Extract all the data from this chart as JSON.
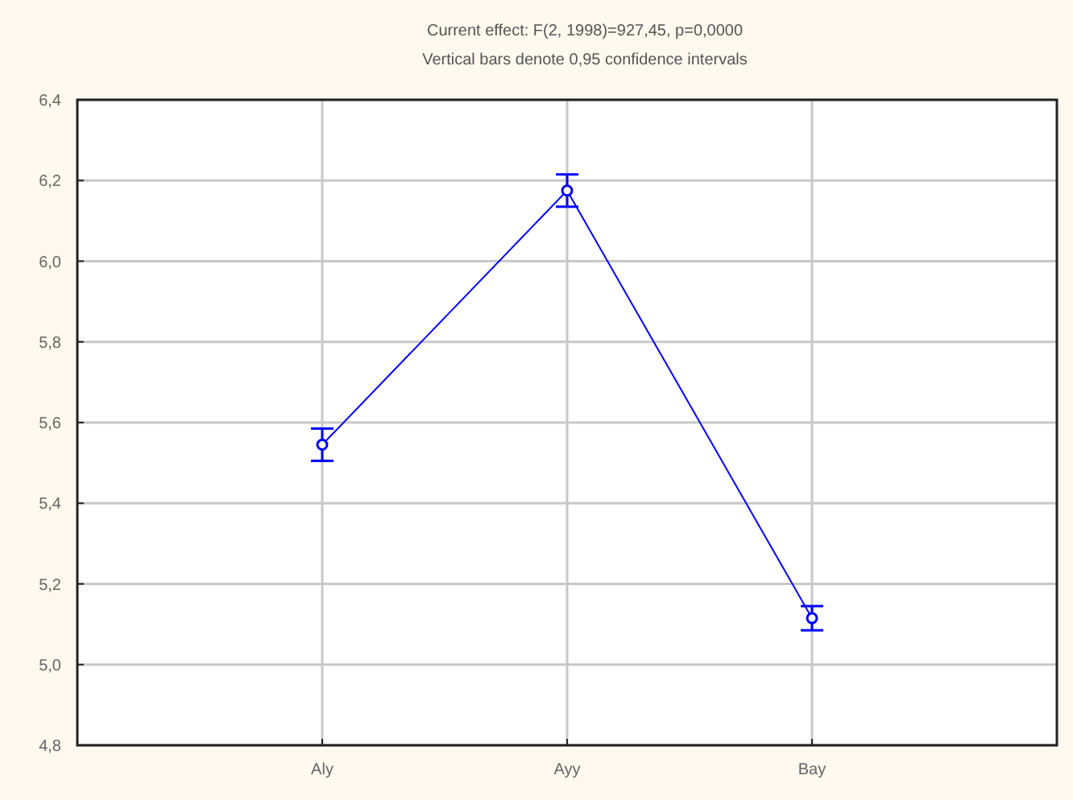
{
  "chart_data": {
    "type": "line",
    "title": "Current effect: F(2, 1998)=927,45, p=0,0000",
    "subtitle": "Vertical bars denote 0,95 confidence intervals",
    "categories": [
      "Aly",
      "Ayy",
      "Bay"
    ],
    "series": [
      {
        "color": "#0000ff",
        "values": [
          5.545,
          6.175,
          5.115
        ],
        "errors": [
          0.04,
          0.04,
          0.03
        ]
      }
    ],
    "ylim": [
      4.8,
      6.4
    ],
    "yticks": [
      {
        "value": 4.8,
        "label": "4,8"
      },
      {
        "value": 5.0,
        "label": "5,0"
      },
      {
        "value": 5.2,
        "label": "5,2"
      },
      {
        "value": 5.4,
        "label": "5,4"
      },
      {
        "value": 5.6,
        "label": "5,6"
      },
      {
        "value": 5.8,
        "label": "5,8"
      },
      {
        "value": 6.0,
        "label": "6,0"
      },
      {
        "value": 6.2,
        "label": "6,2"
      },
      {
        "value": 6.4,
        "label": "6,4"
      }
    ],
    "grid": true,
    "marker": "circle",
    "line_style": "solid"
  }
}
